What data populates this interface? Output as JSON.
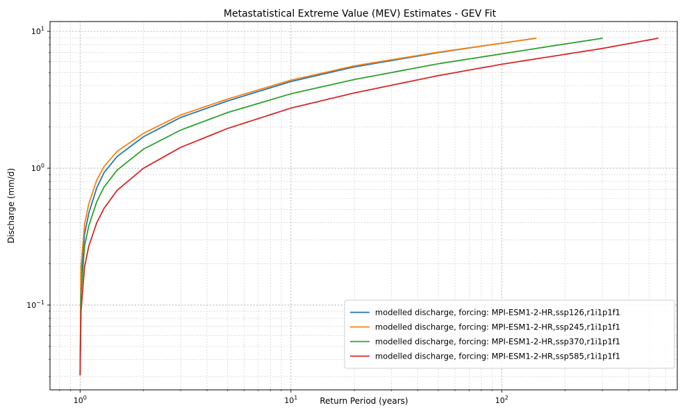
{
  "chart_data": {
    "type": "line",
    "title": "Metastatistical Extreme Value (MEV) Estimates - GEV Fit",
    "xlabel": "Return Period (years)",
    "ylabel": "Discharge (mm/d)",
    "xscale": "log",
    "yscale": "log",
    "xlim": [
      0.72,
      680
    ],
    "ylim": [
      0.024,
      11.8
    ],
    "x_ticks": [
      {
        "value": 1,
        "base": "10",
        "exp": "0"
      },
      {
        "value": 10,
        "base": "10",
        "exp": "1"
      },
      {
        "value": 100,
        "base": "10",
        "exp": "2"
      }
    ],
    "y_ticks": [
      {
        "value": 0.1,
        "base": "10",
        "exp": "−1"
      },
      {
        "value": 1,
        "base": "10",
        "exp": "0"
      },
      {
        "value": 10,
        "base": "10",
        "exp": "1"
      }
    ],
    "grid": "major and minor, dashed",
    "legend_position": "lower-right",
    "series": [
      {
        "name": "modelled discharge, forcing: MPI-ESM1-2-HR,ssp126,r1i1p1f1",
        "color": "#1f77b4",
        "x": [
          1.0,
          1.01,
          1.05,
          1.1,
          1.2,
          1.3,
          1.5,
          2,
          3,
          5,
          10,
          20,
          50,
          100,
          145
        ],
        "y": [
          0.031,
          0.15,
          0.33,
          0.47,
          0.72,
          0.93,
          1.22,
          1.7,
          2.35,
          3.1,
          4.3,
          5.5,
          7.0,
          8.2,
          8.9
        ]
      },
      {
        "name": "modelled discharge, forcing: MPI-ESM1-2-HR,ssp245,r1i1p1f1",
        "color": "#ff7f0e",
        "x": [
          1.0,
          1.01,
          1.05,
          1.1,
          1.2,
          1.3,
          1.5,
          2,
          3,
          5,
          10,
          20,
          50,
          100,
          145
        ],
        "y": [
          0.031,
          0.19,
          0.39,
          0.55,
          0.82,
          1.03,
          1.33,
          1.8,
          2.45,
          3.2,
          4.4,
          5.6,
          7.05,
          8.2,
          8.9
        ]
      },
      {
        "name": "modelled discharge, forcing: MPI-ESM1-2-HR,ssp370,r1i1p1f1",
        "color": "#2ca02c",
        "x": [
          1.0,
          1.01,
          1.05,
          1.1,
          1.2,
          1.3,
          1.5,
          2,
          3,
          5,
          10,
          20,
          50,
          100,
          200,
          300
        ],
        "y": [
          0.031,
          0.12,
          0.27,
          0.38,
          0.57,
          0.73,
          0.97,
          1.38,
          1.9,
          2.55,
          3.5,
          4.45,
          5.8,
          6.85,
          8.1,
          8.9
        ]
      },
      {
        "name": "modelled discharge, forcing: MPI-ESM1-2-HR,ssp585,r1i1p1f1",
        "color": "#d62728",
        "x": [
          1.0,
          1.01,
          1.05,
          1.1,
          1.2,
          1.3,
          1.5,
          2,
          3,
          5,
          10,
          20,
          50,
          100,
          200,
          300,
          550
        ],
        "y": [
          0.031,
          0.09,
          0.19,
          0.27,
          0.4,
          0.51,
          0.69,
          1.0,
          1.42,
          1.95,
          2.75,
          3.55,
          4.75,
          5.75,
          6.8,
          7.5,
          8.9
        ]
      }
    ]
  }
}
